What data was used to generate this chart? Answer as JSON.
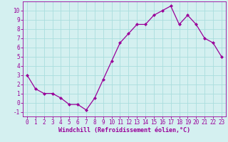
{
  "x": [
    0,
    1,
    2,
    3,
    4,
    5,
    6,
    7,
    8,
    9,
    10,
    11,
    12,
    13,
    14,
    15,
    16,
    17,
    18,
    19,
    20,
    21,
    22,
    23
  ],
  "y": [
    3,
    1.5,
    1,
    1,
    0.5,
    -0.2,
    -0.2,
    -0.8,
    0.5,
    2.5,
    4.5,
    6.5,
    7.5,
    8.5,
    8.5,
    9.5,
    10,
    10.5,
    8.5,
    9.5,
    8.5,
    7,
    6.5,
    5
  ],
  "line_color": "#990099",
  "marker": "D",
  "marker_size": 2,
  "bg_color": "#d4f0f0",
  "grid_color": "#aadddd",
  "xlabel": "Windchill (Refroidissement éolien,°C)",
  "xlabel_color": "#990099",
  "xlabel_fontsize": 6,
  "tick_color": "#990099",
  "tick_fontsize": 5.5,
  "xlim": [
    -0.5,
    23.5
  ],
  "ylim": [
    -1.5,
    11
  ],
  "yticks": [
    -1,
    0,
    1,
    2,
    3,
    4,
    5,
    6,
    7,
    8,
    9,
    10
  ],
  "xticks": [
    0,
    1,
    2,
    3,
    4,
    5,
    6,
    7,
    8,
    9,
    10,
    11,
    12,
    13,
    14,
    15,
    16,
    17,
    18,
    19,
    20,
    21,
    22,
    23
  ]
}
